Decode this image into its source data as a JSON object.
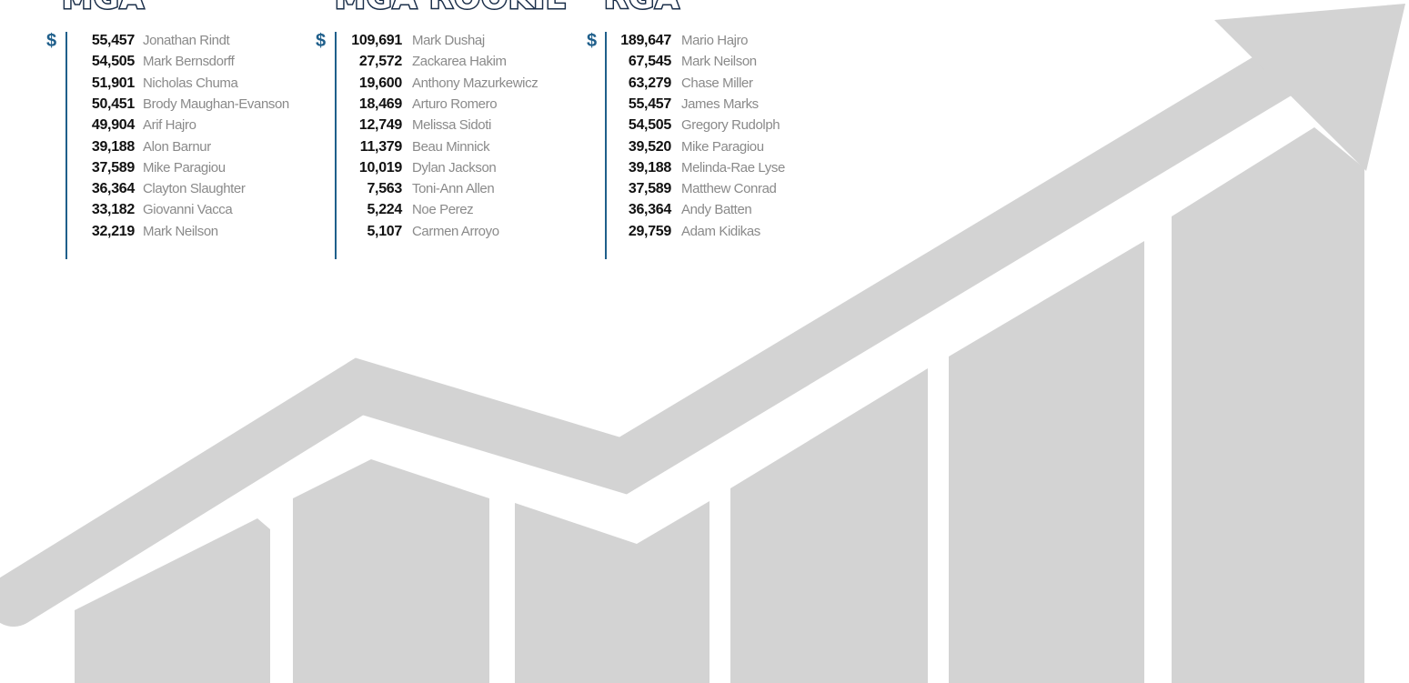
{
  "columns": [
    {
      "title": "MGA",
      "currency": "$",
      "rows": [
        {
          "amount": "55,457",
          "name": "Jonathan Rindt"
        },
        {
          "amount": "54,505",
          "name": "Mark Bernsdorff"
        },
        {
          "amount": "51,901",
          "name": "Nicholas Chuma"
        },
        {
          "amount": "50,451",
          "name": "Brody Maughan-Evanson"
        },
        {
          "amount": "49,904",
          "name": "Arif Hajro"
        },
        {
          "amount": "39,188",
          "name": "Alon Barnur"
        },
        {
          "amount": "37,589",
          "name": "Mike Paragiou"
        },
        {
          "amount": "36,364",
          "name": "Clayton Slaughter"
        },
        {
          "amount": "33,182",
          "name": "Giovanni Vacca"
        },
        {
          "amount": "32,219",
          "name": "Mark Neilson"
        }
      ]
    },
    {
      "title": "MGA ROOKIE",
      "currency": "$",
      "rows": [
        {
          "amount": "109,691",
          "name": "Mark Dushaj"
        },
        {
          "amount": "27,572",
          "name": "Zackarea Hakim"
        },
        {
          "amount": "19,600",
          "name": "Anthony Mazurkewicz"
        },
        {
          "amount": "18,469",
          "name": "Arturo Romero"
        },
        {
          "amount": "12,749",
          "name": "Melissa Sidoti"
        },
        {
          "amount": "11,379",
          "name": "Beau Minnick"
        },
        {
          "amount": "10,019",
          "name": "Dylan Jackson"
        },
        {
          "amount": "7,563",
          "name": "Toni-Ann Allen"
        },
        {
          "amount": "5,224",
          "name": "Noe Perez"
        },
        {
          "amount": "5,107",
          "name": "Carmen Arroyo"
        }
      ]
    },
    {
      "title": "RGA",
      "currency": "$",
      "rows": [
        {
          "amount": "189,647",
          "name": "Mario Hajro"
        },
        {
          "amount": "67,545",
          "name": "Mark Neilson"
        },
        {
          "amount": "63,279",
          "name": "Chase Miller"
        },
        {
          "amount": "55,457",
          "name": "James Marks"
        },
        {
          "amount": "54,505",
          "name": "Gregory Rudolph"
        },
        {
          "amount": "39,520",
          "name": "Mike Paragiou"
        },
        {
          "amount": "39,188",
          "name": "Melinda-Rae Lyse"
        },
        {
          "amount": "37,589",
          "name": "Matthew Conrad"
        },
        {
          "amount": "36,364",
          "name": "Andy Batten"
        },
        {
          "amount": "29,759",
          "name": "Adam Kidikas"
        }
      ]
    }
  ]
}
